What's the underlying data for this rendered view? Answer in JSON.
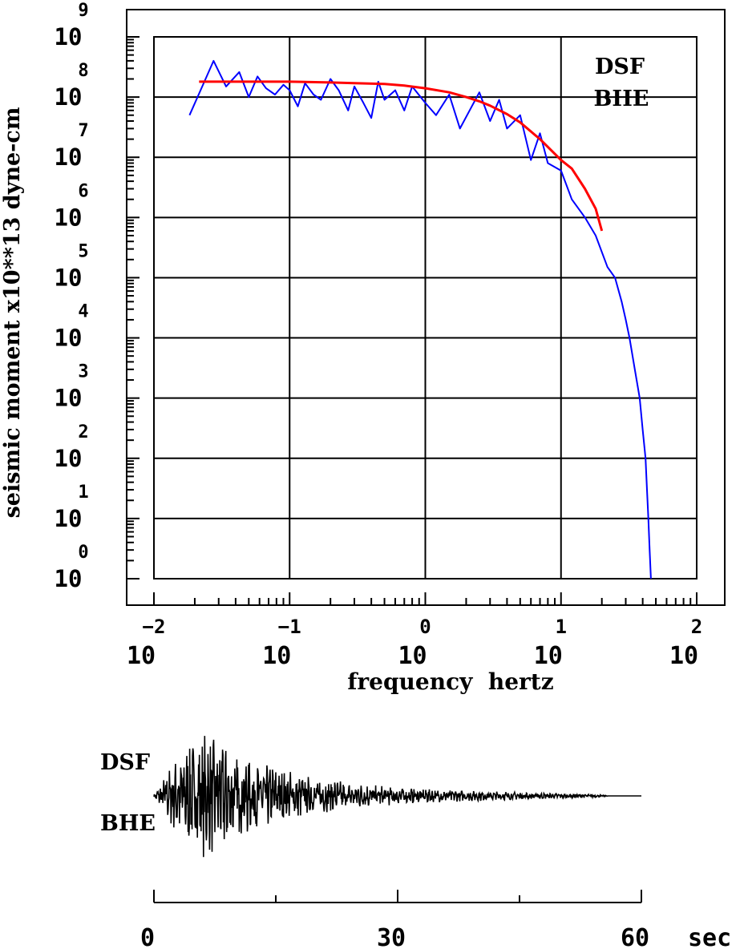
{
  "chart_data": [
    {
      "type": "line",
      "xlabel": "frequency  hertz",
      "ylabel": "seismic moment x10**13 dyne-cm",
      "x_scale": "log",
      "y_scale": "log",
      "xlim": [
        0.01,
        100
      ],
      "ylim": [
        1,
        1000000000
      ],
      "grid": true,
      "x_ticks": [
        {
          "base": "10",
          "exp": "−2"
        },
        {
          "base": "10",
          "exp": "−1"
        },
        {
          "base": "10",
          "exp": "0"
        },
        {
          "base": "10",
          "exp": "1"
        },
        {
          "base": "10",
          "exp": "2"
        }
      ],
      "y_ticks": [
        {
          "base": "10",
          "exp": "0"
        },
        {
          "base": "10",
          "exp": "1"
        },
        {
          "base": "10",
          "exp": "2"
        },
        {
          "base": "10",
          "exp": "3"
        },
        {
          "base": "10",
          "exp": "4"
        },
        {
          "base": "10",
          "exp": "5"
        },
        {
          "base": "10",
          "exp": "6"
        },
        {
          "base": "10",
          "exp": "7"
        },
        {
          "base": "10",
          "exp": "8"
        },
        {
          "base": "10",
          "exp": "9"
        }
      ],
      "annotation": [
        "DSF",
        "BHE"
      ],
      "series": [
        {
          "color": "#0000ff",
          "x": [
            0.0183,
            0.0275,
            0.034,
            0.0425,
            0.05,
            0.058,
            0.067,
            0.078,
            0.09,
            0.1,
            0.115,
            0.13,
            0.15,
            0.17,
            0.2,
            0.23,
            0.27,
            0.3,
            0.35,
            0.4,
            0.45,
            0.5,
            0.6,
            0.7,
            0.8,
            1.0,
            1.2,
            1.5,
            1.8,
            2.2,
            2.5,
            3.0,
            3.5,
            4.0,
            5.0,
            6.0,
            7.0,
            8.0,
            10.0,
            12.0,
            15.0,
            18.0,
            22.0,
            25.0,
            28.0,
            30.0,
            32.0,
            35.0,
            38.0,
            40.0,
            42.0,
            43.0,
            44.0,
            45.0,
            46.0
          ],
          "y": [
            50000000,
            400000000,
            150000000,
            260000000,
            100000000,
            220000000,
            140000000,
            110000000,
            160000000,
            130000000,
            70000000,
            170000000,
            110000000,
            90000000,
            200000000,
            130000000,
            60000000,
            150000000,
            80000000,
            45000000,
            180000000,
            90000000,
            130000000,
            60000000,
            150000000,
            80000000,
            50000000,
            110000000,
            30000000,
            70000000,
            120000000,
            40000000,
            90000000,
            30000000,
            50000000,
            9000000,
            25000000,
            8000000,
            6000000,
            2000000,
            1000000,
            500000,
            150000,
            100000,
            40000,
            20000,
            10000,
            3000,
            1000,
            300,
            100,
            30,
            10,
            3,
            1
          ]
        },
        {
          "color": "#ff0000",
          "x": [
            0.0215,
            0.05,
            0.1,
            0.2,
            0.3,
            0.5,
            0.7,
            1.0,
            1.5,
            2.0,
            2.5,
            3.0,
            4.0,
            5.0,
            7.0,
            10.0,
            12.0,
            15.0,
            18.0,
            20.0
          ],
          "y": [
            180000000,
            180000000,
            180000000,
            175000000,
            170000000,
            165000000,
            155000000,
            140000000,
            120000000,
            100000000,
            85000000,
            72000000,
            52000000,
            38000000,
            20000000,
            9000000,
            6500000,
            3000000,
            1400000,
            600000
          ]
        }
      ]
    },
    {
      "type": "line",
      "annotation": [
        "DSF",
        "BHE"
      ],
      "x_unit": "sec",
      "xlim": [
        0,
        60
      ],
      "x_ticks": [
        "0",
        "30",
        "60"
      ],
      "envelope": {
        "t": [
          0,
          2,
          4,
          6,
          8,
          10,
          12,
          15,
          20,
          25,
          30,
          35,
          40,
          45,
          50,
          55,
          56
        ],
        "amplitude": [
          0.02,
          0.45,
          0.8,
          1.0,
          0.9,
          0.75,
          0.6,
          0.45,
          0.3,
          0.2,
          0.14,
          0.1,
          0.08,
          0.06,
          0.04,
          0.02,
          0.0
        ]
      },
      "series": [
        {
          "color": "#000000"
        }
      ]
    }
  ]
}
